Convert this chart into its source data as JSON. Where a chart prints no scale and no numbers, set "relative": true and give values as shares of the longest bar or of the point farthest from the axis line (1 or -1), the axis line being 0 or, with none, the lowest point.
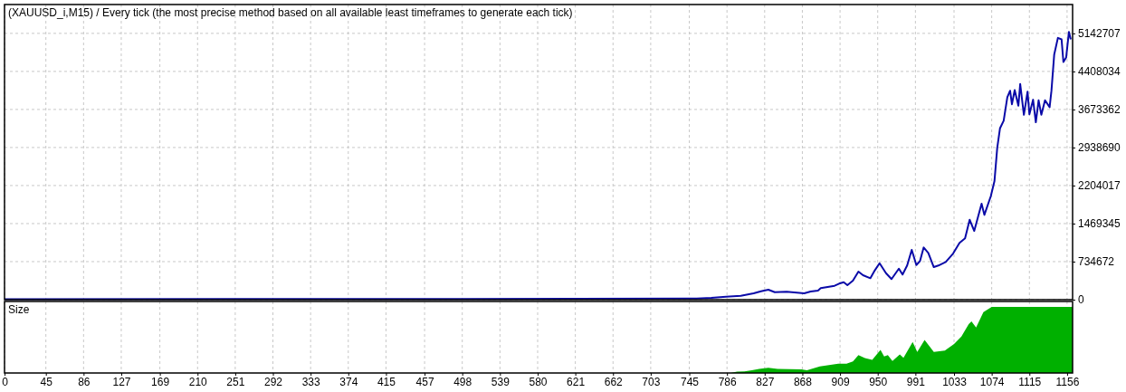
{
  "chart_data": [
    {
      "type": "line",
      "title": "(XAUUSD_i,M15) / Every tick (the most precise method based on all available least timeframes to generate each tick)",
      "x": [
        0,
        400,
        753,
        769,
        785,
        801,
        815,
        823,
        831,
        838,
        851,
        870,
        877,
        885,
        888,
        903,
        908,
        913,
        917,
        923,
        929,
        934,
        942,
        947,
        952,
        959,
        965,
        973,
        977,
        982,
        987,
        992,
        996,
        1000,
        1005,
        1011,
        1016,
        1024,
        1032,
        1039,
        1045,
        1050,
        1055,
        1063,
        1066,
        1073,
        1077,
        1080,
        1083,
        1087,
        1091,
        1094,
        1096,
        1099,
        1103,
        1105,
        1109,
        1113,
        1115,
        1119,
        1122,
        1125,
        1128,
        1132,
        1137,
        1139,
        1142,
        1146,
        1150,
        1152,
        1155,
        1158,
        1160
      ],
      "series": [
        {
          "color": "#0a0aa8",
          "values": [
            10000,
            12000,
            20000,
            35000,
            58000,
            75000,
            122000,
            163000,
            192000,
            145000,
            152000,
            122000,
            157000,
            175000,
            222000,
            268000,
            309000,
            337000,
            280000,
            367000,
            542000,
            472000,
            414000,
            571000,
            704000,
            512000,
            397000,
            599000,
            484000,
            659000,
            961000,
            669000,
            746000,
            1008000,
            903000,
            629000,
            659000,
            729000,
            891000,
            1096000,
            1183000,
            1543000,
            1328000,
            1852000,
            1637000,
            1997000,
            2289000,
            2930000,
            3308000,
            3455000,
            3909000,
            4036000,
            3774000,
            4048000,
            3745000,
            4164000,
            3570000,
            4018000,
            3582000,
            3862000,
            3425000,
            3850000,
            3570000,
            3850000,
            3717000,
            4036000,
            4735000,
            5055000,
            5027000,
            4590000,
            4678000,
            5172000,
            5027000
          ]
        }
      ],
      "xlim": [
        0,
        1162
      ],
      "ylim": [
        0,
        5700000
      ],
      "yticks": [
        0,
        734672,
        1469345,
        2204017,
        2938690,
        3673362,
        4408034,
        5142707
      ],
      "grid": true,
      "line_style": "solid",
      "tick_labels": "y"
    },
    {
      "type": "area",
      "title": "Size",
      "relative": true,
      "x": [
        0,
        790,
        797,
        805,
        813,
        821,
        831,
        841,
        867,
        873,
        887,
        907,
        916,
        923,
        929,
        936,
        944,
        953,
        957,
        961,
        966,
        974,
        978,
        988,
        993,
        1001,
        1011,
        1023,
        1033,
        1041,
        1049,
        1052,
        1057,
        1065,
        1074,
        1159,
        1162
      ],
      "series": [
        {
          "color": "#00b000",
          "values": [
            0,
            0,
            0.02,
            0.023,
            0.04,
            0.06,
            0.08,
            0.06,
            0.055,
            0.04,
            0.1,
            0.14,
            0.14,
            0.175,
            0.27,
            0.225,
            0.2,
            0.35,
            0.25,
            0.27,
            0.18,
            0.28,
            0.23,
            0.47,
            0.32,
            0.5,
            0.32,
            0.34,
            0.44,
            0.55,
            0.74,
            0.78,
            0.69,
            0.92,
            1,
            1,
            1
          ]
        }
      ],
      "xlim": [
        0,
        1162
      ],
      "xticks": [
        0,
        45,
        86,
        127,
        169,
        210,
        251,
        292,
        333,
        374,
        415,
        457,
        498,
        539,
        580,
        621,
        662,
        703,
        745,
        786,
        827,
        868,
        909,
        950,
        991,
        1033,
        1074,
        1115,
        1156
      ],
      "grid": "x",
      "tick_labels": "x"
    }
  ]
}
